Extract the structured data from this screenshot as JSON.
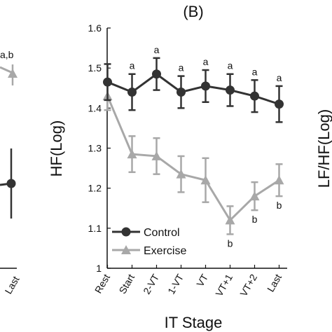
{
  "panel_label": "(B)",
  "left_fragment": {
    "sig_label": "a,b",
    "tick_label": "Last"
  },
  "right_fragment": {
    "ylabel": "LF/HF(Log)"
  },
  "chart_data": {
    "type": "line",
    "xlabel": "IT Stage",
    "ylabel": "HF(Log)",
    "categories": [
      "Rest",
      "Start",
      "2-VT",
      "1-VT",
      "VT",
      "VT+1",
      "VT+2",
      "Last"
    ],
    "ylim": [
      1,
      1.6
    ],
    "yticks": [
      "1",
      "1.1",
      "1.2",
      "1.3",
      "1.4",
      "1.5",
      "1.6"
    ],
    "grid": false,
    "legend_position": "bottom-left",
    "series": [
      {
        "name": "Control",
        "marker": "circle",
        "color": "#333333",
        "values": [
          1.465,
          1.44,
          1.485,
          1.44,
          1.455,
          1.445,
          1.43,
          1.41
        ],
        "errors": [
          0.045,
          0.045,
          0.04,
          0.04,
          0.04,
          0.04,
          0.04,
          0.045
        ],
        "annotations": [
          "",
          "a",
          "a",
          "a",
          "a",
          "a",
          "a",
          "a"
        ]
      },
      {
        "name": "Exercise",
        "marker": "triangle",
        "color": "#a8a8a8",
        "values": [
          1.43,
          1.285,
          1.28,
          1.235,
          1.22,
          1.12,
          1.18,
          1.22
        ],
        "errors": [
          0.035,
          0.045,
          0.045,
          0.045,
          0.055,
          0.035,
          0.035,
          0.04
        ],
        "annotations": [
          "",
          "",
          "",
          "",
          "",
          "b",
          "b",
          "b"
        ]
      }
    ]
  }
}
